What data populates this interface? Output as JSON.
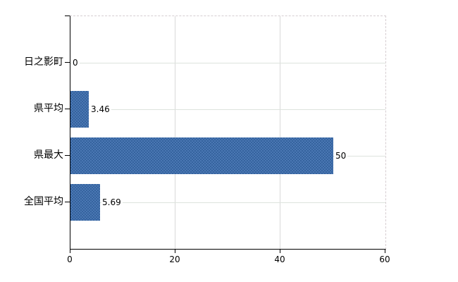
{
  "chart_data": {
    "type": "bar",
    "orientation": "horizontal",
    "title": "",
    "categories": [
      "日之影町",
      "県平均",
      "県最大",
      "全国平均"
    ],
    "values": [
      0,
      3.46,
      50,
      5.69
    ],
    "value_labels": [
      "0",
      "3.46",
      "50",
      "5.69"
    ],
    "x_ticks": [
      0,
      20,
      40,
      60
    ],
    "x_tick_labels": [
      "0",
      "20",
      "40",
      "60"
    ],
    "xlim": [
      0,
      60
    ],
    "grid": true,
    "legend": "none",
    "colors": {
      "bar": "#4171ad",
      "bar_dither_dark": "#35639e",
      "bar_dither_light": "#4a77b3",
      "h_gridline": "#dde3dd",
      "v_gridline": "#d9d9d9",
      "frame_dashed": "#d6cdd1",
      "axis": "#000000",
      "text": "#000000",
      "background": "#ffffff"
    }
  }
}
